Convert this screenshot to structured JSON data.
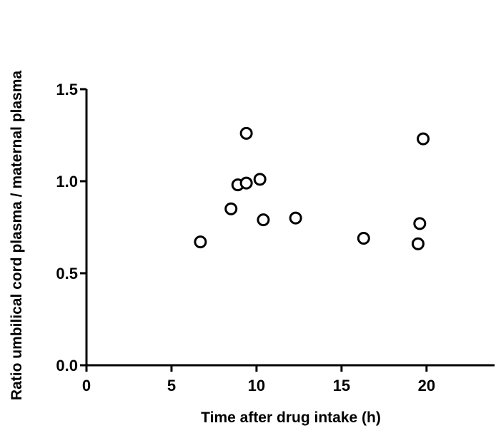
{
  "chart_data": {
    "type": "scatter",
    "title": "",
    "xlabel": "Time after drug intake (h)",
    "ylabel": "Ratio umbilical cord plasma / maternal plasma",
    "xlim": [
      0,
      24
    ],
    "ylim": [
      0,
      1.5
    ],
    "x_ticks": [
      0,
      5,
      10,
      15,
      20
    ],
    "y_ticks": [
      0.0,
      0.5,
      1.0,
      1.5
    ],
    "x_tick_labels": [
      "0",
      "5",
      "10",
      "15",
      "20"
    ],
    "y_tick_labels": [
      "0.0",
      "0.5",
      "1.0",
      "1.5"
    ],
    "grid": false,
    "legend": "none",
    "marker": "open-circle",
    "series": [
      {
        "points": [
          {
            "x": 6.7,
            "y": 0.67
          },
          {
            "x": 8.5,
            "y": 0.85
          },
          {
            "x": 8.9,
            "y": 0.98
          },
          {
            "x": 9.4,
            "y": 0.99
          },
          {
            "x": 9.4,
            "y": 1.26
          },
          {
            "x": 10.2,
            "y": 1.01
          },
          {
            "x": 10.4,
            "y": 0.79
          },
          {
            "x": 12.3,
            "y": 0.8
          },
          {
            "x": 16.3,
            "y": 0.69
          },
          {
            "x": 19.5,
            "y": 0.66
          },
          {
            "x": 19.6,
            "y": 0.77
          },
          {
            "x": 19.8,
            "y": 1.23
          }
        ]
      }
    ]
  }
}
